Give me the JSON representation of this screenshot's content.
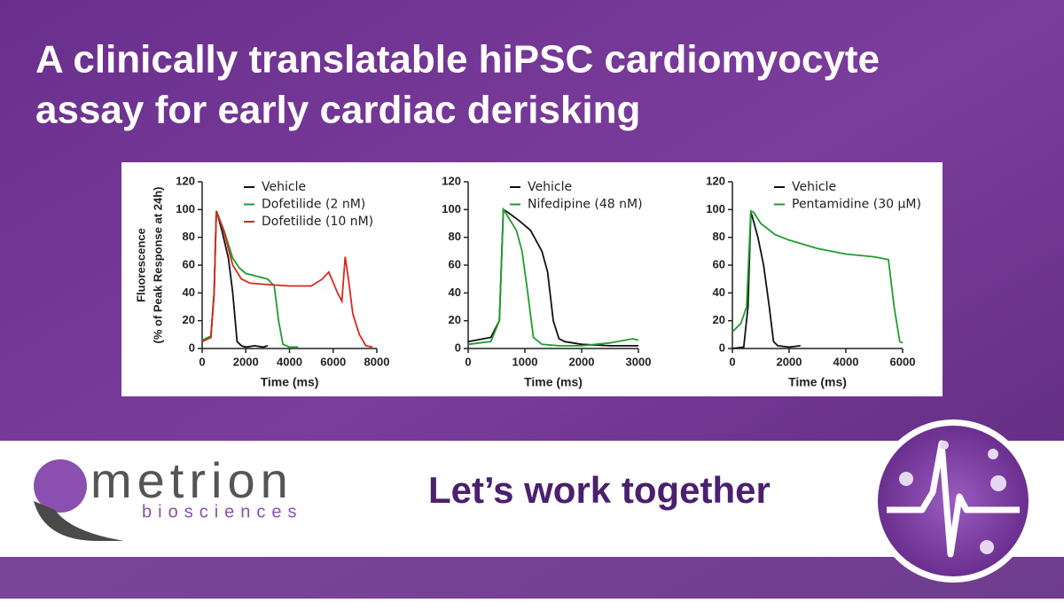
{
  "title": [
    "A clinically translatable hiPSC cardiomyocyte",
    "assay for early cardiac derisking"
  ],
  "logo": {
    "name": "metrion",
    "subname": "biosciences"
  },
  "slogan": "Let’s work together",
  "chart_data": [
    {
      "type": "line",
      "ylabel": [
        "Fluorescence",
        "(% of Peak Response at 24h)"
      ],
      "xlabel": "Time (ms)",
      "xlim": [
        0,
        8000
      ],
      "ylim": [
        0,
        120
      ],
      "xticks": [
        0,
        2000,
        4000,
        6000,
        8000
      ],
      "yticks": [
        0,
        20,
        40,
        60,
        80,
        100,
        120
      ],
      "legend": "top-right",
      "series": [
        {
          "name": "Vehicle",
          "color": "#111111",
          "x": [
            0,
            400,
            550,
            650,
            700,
            900,
            1200,
            1400,
            1600,
            1800,
            2000,
            2400,
            2800,
            3000
          ],
          "values": [
            5,
            8,
            40,
            99,
            97,
            85,
            65,
            40,
            5,
            2,
            1,
            2,
            1,
            2
          ]
        },
        {
          "name": "Dofetilide (2 nM)",
          "color": "#1e9e2e",
          "x": [
            0,
            400,
            550,
            650,
            700,
            1000,
            1400,
            1700,
            2000,
            2500,
            3000,
            3300,
            3500,
            3700,
            4000,
            4400
          ],
          "values": [
            6,
            9,
            40,
            99,
            97,
            85,
            65,
            58,
            54,
            52,
            50,
            45,
            20,
            3,
            1,
            1
          ]
        },
        {
          "name": "Dofetilide (10 nM)",
          "color": "#d42a1e",
          "x": [
            0,
            400,
            550,
            650,
            700,
            1000,
            1400,
            1800,
            2200,
            3000,
            4000,
            5000,
            5500,
            5800,
            6200,
            6400,
            6550,
            6700,
            6900,
            7200,
            7500,
            7800
          ],
          "values": [
            5,
            8,
            40,
            99,
            97,
            84,
            60,
            50,
            47,
            46,
            45,
            45,
            50,
            55,
            40,
            34,
            66,
            50,
            25,
            10,
            2,
            1
          ]
        }
      ]
    },
    {
      "type": "line",
      "xlabel": "Time (ms)",
      "xlim": [
        0,
        3000
      ],
      "ylim": [
        0,
        120
      ],
      "xticks": [
        0,
        1000,
        2000,
        3000
      ],
      "yticks": [
        0,
        20,
        40,
        60,
        80,
        100,
        120
      ],
      "legend": "top-right",
      "series": [
        {
          "name": "Vehicle",
          "color": "#111111",
          "x": [
            0,
            400,
            550,
            620,
            700,
            900,
            1100,
            1300,
            1400,
            1500,
            1600,
            1700,
            2000,
            2500,
            3000
          ],
          "values": [
            5,
            8,
            20,
            100,
            98,
            92,
            85,
            70,
            55,
            20,
            7,
            5,
            3,
            2,
            2
          ]
        },
        {
          "name": "Nifedipine (48 nM)",
          "color": "#1e9e2e",
          "x": [
            0,
            400,
            550,
            620,
            700,
            850,
            950,
            1050,
            1150,
            1300,
            1600,
            2000,
            2500,
            2900,
            3000
          ],
          "values": [
            3,
            5,
            20,
            100,
            95,
            85,
            70,
            40,
            8,
            3,
            2,
            2,
            4,
            7,
            6
          ]
        }
      ]
    },
    {
      "type": "line",
      "xlabel": "Time (ms)",
      "xlim": [
        0,
        6000
      ],
      "ylim": [
        0,
        120
      ],
      "xticks": [
        0,
        2000,
        4000,
        6000
      ],
      "yticks": [
        0,
        20,
        40,
        60,
        80,
        100,
        120
      ],
      "legend": "top-right",
      "series": [
        {
          "name": "Vehicle",
          "color": "#111111",
          "x": [
            0,
            400,
            550,
            650,
            700,
            900,
            1100,
            1300,
            1450,
            1600,
            2000,
            2400
          ],
          "values": [
            0,
            1,
            30,
            98,
            95,
            80,
            60,
            30,
            5,
            2,
            1,
            2
          ]
        },
        {
          "name": "Pentamidine (30 µM)",
          "color": "#1e9e2e",
          "x": [
            0,
            300,
            500,
            650,
            750,
            1000,
            1500,
            2000,
            3000,
            4000,
            5000,
            5500,
            5700,
            5900,
            6000
          ],
          "values": [
            12,
            18,
            30,
            99,
            98,
            90,
            82,
            78,
            72,
            68,
            66,
            64,
            30,
            5,
            4
          ]
        }
      ]
    }
  ]
}
